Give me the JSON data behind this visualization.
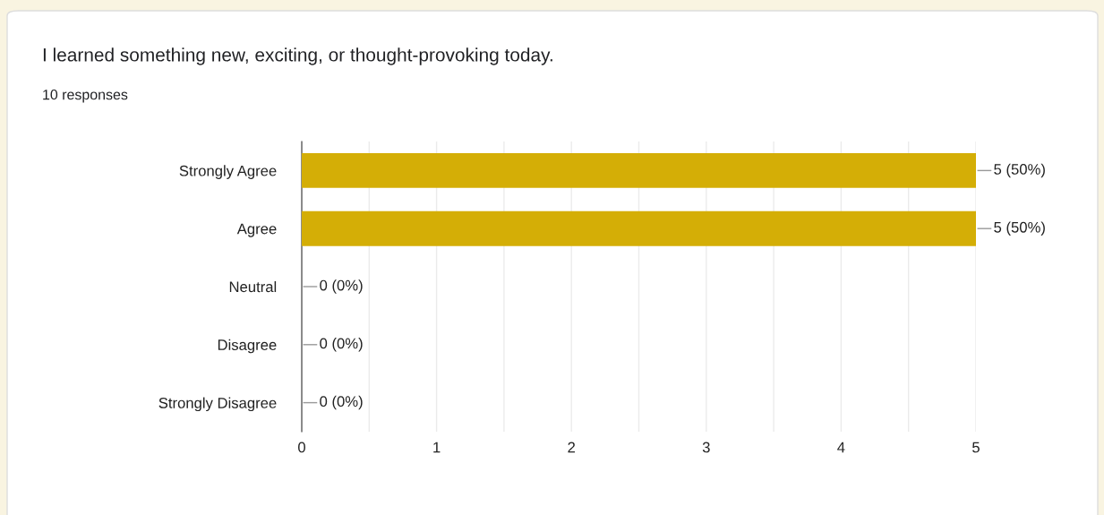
{
  "chart_data": {
    "type": "bar",
    "orientation": "horizontal",
    "title": "I learned something new, exciting, or thought-provoking today.",
    "subtitle": "10 responses",
    "categories": [
      "Strongly Agree",
      "Agree",
      "Neutral",
      "Disagree",
      "Strongly Disagree"
    ],
    "values": [
      5,
      5,
      0,
      0,
      0
    ],
    "color": "#d4ae06",
    "value_labels": [
      "5 (50%)",
      "5 (50%)",
      "0 (0%)",
      "0 (0%)",
      "0 (0%)"
    ],
    "xlim": [
      0,
      5
    ],
    "xticks": [
      0,
      {
        "value": 0.5,
        "label": null
      },
      1,
      {
        "value": 1.5,
        "label": null
      },
      2,
      {
        "value": 2.5,
        "label": null
      },
      3,
      {
        "value": 3.5,
        "label": null
      },
      4,
      {
        "value": 4.5,
        "label": null
      },
      5
    ],
    "grid": "x",
    "legend": false
  }
}
